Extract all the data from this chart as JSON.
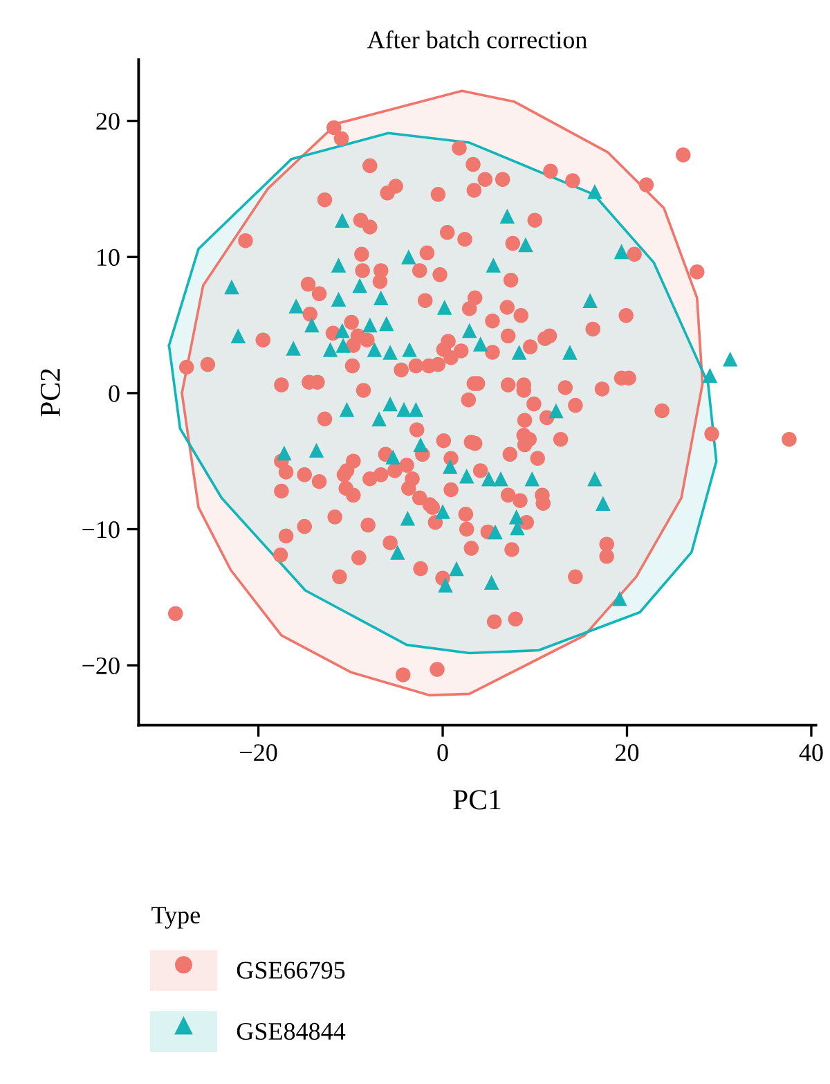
{
  "chart_data": {
    "type": "scatter",
    "title": "After batch correction",
    "xlabel": "PC1",
    "ylabel": "PC2",
    "legend_title": "Type",
    "legend": "bottom",
    "xlim": [
      -33,
      40.5
    ],
    "ylim": [
      -24.4,
      24.5
    ],
    "xticks": [
      -20,
      0,
      20,
      40
    ],
    "yticks": [
      -20,
      -10,
      0,
      10,
      20
    ],
    "series": [
      {
        "type": "area",
        "color": "#f0756b",
        "x": [
          -28.3,
          -26,
          -19,
          -11.5,
          2.1,
          7.8,
          17.9,
          24,
          27.6,
          28.2,
          25.9,
          21,
          15.4,
          2.9,
          -1.4,
          -10,
          -17.5,
          -23,
          -26.5,
          -28.3
        ],
        "values": [
          0,
          7.9,
          15,
          19.8,
          22.2,
          21.4,
          17.7,
          13.6,
          7,
          0.7,
          -7.7,
          -13.5,
          -17.8,
          -22.1,
          -22.2,
          -20.5,
          -17.8,
          -13,
          -8.4,
          0
        ]
      },
      {
        "type": "area",
        "color": "#12b5b9",
        "x": [
          -29.7,
          -26.5,
          -16.4,
          -5.9,
          2.9,
          16.4,
          22.9,
          28.8,
          29.7,
          27,
          21.4,
          10.4,
          2.9,
          -3.9,
          -14.9,
          -24,
          -28.5,
          -29.7
        ],
        "values": [
          3.5,
          10.6,
          17.2,
          19.1,
          18.4,
          14.6,
          9.6,
          0.7,
          -5,
          -11.7,
          -16.1,
          -18.9,
          -19.1,
          -18.5,
          -14.5,
          -7.7,
          -2.6,
          3.5
        ]
      },
      {
        "name": "GSE66795",
        "color": "#ef776e",
        "marker": "circle",
        "x": [
          -11.8,
          -11.0,
          1.8,
          3.3,
          -7.9,
          -5.1,
          -6.0,
          -0.5,
          3.4,
          -12.8,
          -8.9,
          -7.9,
          0.5,
          2.4,
          -21.4,
          -8.8,
          -1.7,
          -2.5,
          -0.3,
          -8.7,
          -6.7,
          -6.8,
          -14.6,
          26.1,
          22.1,
          11.7,
          14.1,
          4.6,
          6.5,
          10.0,
          7.6,
          7.4,
          20.8,
          27.6,
          -13.4,
          -1.9,
          2.9,
          -14.4,
          -9.9,
          -11.9,
          -9.2,
          -19.5,
          -9.7,
          -8.2,
          0.6,
          0.1,
          2.0,
          0.9,
          -27.8,
          -25.5,
          -9.8,
          -4.5,
          -2.9,
          -1.5,
          -0.5,
          -17.5,
          -14.5,
          -13.6,
          -8.6,
          3.4,
          2.8,
          -12.8,
          -2.8,
          0.1,
          3.1,
          -6.2,
          -2.2,
          -17.5,
          -17.0,
          -15.0,
          -13.4,
          -9.7,
          -10.4,
          -10.7,
          -7.9,
          -6.7,
          -5.2,
          -3.9,
          -3.3,
          -3.7,
          0.9,
          0.9,
          -17.5,
          -10.5,
          -9.7,
          -2.5,
          -1.4,
          3.5,
          7.0,
          8.5,
          5.4,
          19.9,
          16.3,
          7.1,
          11.1,
          11.6,
          9.5,
          5.4,
          3.8,
          7.1,
          8.8,
          8.8,
          13.3,
          17.3,
          19.4,
          20.2,
          9.9,
          14.4,
          8.9,
          11.3,
          23.8,
          8.8,
          9.4,
          8.9,
          12.8,
          3.5,
          7.3,
          10.3,
          29.2,
          37.6,
          4.1,
          7.1,
          8.4,
          10.8,
          10.9,
          -17.0,
          -15.0,
          -11.7,
          -8.1,
          -17.6,
          -9.1,
          -11.2,
          -2.4,
          -5.7,
          -1.1,
          -0.8,
          2.5,
          2.6,
          3.1,
          0,
          -29.0,
          -4.3,
          -0.6,
          9.1,
          4.9,
          7.5,
          17.8,
          17.8,
          14.4,
          5.6,
          7.9
        ],
        "values": [
          19.5,
          18.7,
          18.0,
          16.8,
          16.7,
          15.2,
          14.7,
          14.6,
          14.9,
          14.2,
          12.7,
          12.2,
          11.8,
          11.3,
          11.2,
          10.2,
          10.3,
          9.0,
          8.7,
          9.0,
          9.0,
          8.2,
          8.0,
          17.5,
          15.3,
          16.3,
          15.6,
          15.7,
          15.7,
          12.7,
          11.0,
          8.3,
          10.2,
          8.9,
          7.3,
          6.8,
          6.2,
          5.8,
          5.2,
          4.4,
          4.2,
          3.9,
          3.5,
          3.9,
          3.8,
          3.2,
          3.1,
          2.6,
          1.9,
          2.1,
          2.0,
          1.7,
          2.0,
          2.0,
          2.1,
          0.6,
          0.8,
          0.8,
          0.2,
          0.7,
          -0.5,
          -1.9,
          -2.7,
          -3.5,
          -3.6,
          -4.5,
          -4.5,
          -5.0,
          -5.8,
          -6.0,
          -6.5,
          -5.0,
          -5.7,
          -6.0,
          -6.3,
          -6.0,
          -5.7,
          -5.3,
          -6.3,
          -7.0,
          -4.8,
          -7.1,
          -7.2,
          -7.0,
          -7.5,
          -7.7,
          -8.2,
          7.0,
          6.3,
          5.7,
          5.3,
          5.7,
          4.7,
          4.2,
          4.0,
          4.2,
          3.4,
          3.0,
          0.7,
          0.6,
          0.6,
          0.2,
          0.4,
          0.3,
          1.1,
          1.1,
          -0.8,
          -0.9,
          -2.0,
          -1.8,
          -1.3,
          -3.1,
          -3.4,
          -3.8,
          -3.4,
          -3.7,
          -4.5,
          -4.8,
          -3.0,
          -3.4,
          -5.7,
          -7.5,
          -7.9,
          -7.5,
          -8.1,
          -10.5,
          -9.8,
          -9.1,
          -9.7,
          -11.9,
          -12.1,
          -13.5,
          -12.9,
          -11.0,
          -8.4,
          -9.5,
          -8.9,
          -10.0,
          -11.4,
          -13.6,
          -16.2,
          -20.7,
          -20.3,
          -9.5,
          -10.2,
          -11.5,
          -11.1,
          -12.0,
          -13.5,
          -16.8,
          -16.6
        ]
      },
      {
        "name": "GSE84844",
        "color": "#17b2b6",
        "marker": "triangle",
        "x": [
          -10.9,
          -11.3,
          -3.7,
          -9.0,
          -22.9,
          16.5,
          7.0,
          9.0,
          5.5,
          19.4,
          -15.9,
          -11.3,
          -6.7,
          -14.2,
          -10.9,
          -7.9,
          -6.1,
          0.2,
          2.9,
          -22.2,
          -16.2,
          -12.2,
          -10.8,
          -7.4,
          -5.7,
          -3.6,
          -10.4,
          -5.7,
          -4.2,
          -2.9,
          -6.9,
          -17.2,
          -13.7,
          -5.4,
          -2.4,
          0.8,
          2.6,
          16.0,
          4.1,
          8.3,
          13.8,
          12.3,
          29.0,
          31.2,
          5.0,
          6.3,
          9.7,
          16.5,
          17.4,
          -3.8,
          0,
          -4.9,
          1.5,
          0.3,
          8.0,
          8.1,
          5.7,
          5.3,
          19.2
        ],
        "values": [
          12.7,
          9.4,
          10.0,
          7.9,
          7.8,
          14.8,
          13.0,
          10.9,
          9.4,
          10.4,
          6.4,
          6.9,
          7.0,
          5.0,
          4.6,
          5.0,
          5.1,
          6.3,
          4.6,
          4.2,
          3.3,
          3.2,
          3.5,
          3.2,
          3.0,
          3.2,
          -1.2,
          -0.8,
          -1.2,
          -1.2,
          -1.9,
          -4.4,
          -4.2,
          -4.7,
          -3.8,
          -5.4,
          -6.1,
          6.8,
          3.6,
          3.0,
          3.0,
          -1.3,
          1.3,
          2.5,
          -6.3,
          -6.3,
          -6.3,
          -6.3,
          -8.1,
          -9.2,
          -8.7,
          -11.7,
          -12.9,
          -14.1,
          -9.1,
          -9.9,
          -10.2,
          -13.9,
          -15.1
        ]
      }
    ]
  }
}
